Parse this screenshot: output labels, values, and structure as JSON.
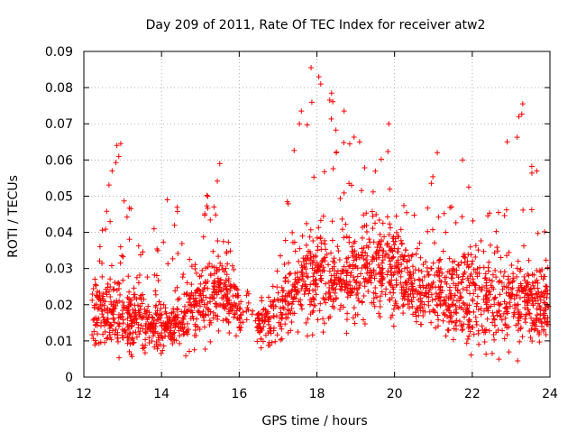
{
  "chart_data": {
    "type": "scatter",
    "title": "Day 209 of 2011, Rate Of TEC Index for receiver atw2",
    "xlabel": "GPS time / hours",
    "ylabel": "ROTI / TECUs",
    "xlim": [
      12,
      24
    ],
    "ylim": [
      0,
      0.09
    ],
    "xticks": [
      12,
      14,
      16,
      18,
      20,
      22,
      24
    ],
    "xtick_labels": [
      "12",
      "14",
      "16",
      "18",
      "20",
      "22",
      "24"
    ],
    "yticks": [
      0,
      0.01,
      0.02,
      0.03,
      0.04,
      0.05,
      0.06,
      0.07,
      0.08,
      0.09
    ],
    "ytick_labels": [
      "0",
      "0.01",
      "0.02",
      "0.03",
      "0.04",
      "0.05",
      "0.06",
      "0.07",
      "0.08",
      "0.09"
    ],
    "grid": true,
    "marker": "+",
    "color": "#ff0000",
    "density_profile": [
      {
        "x": 12.2,
        "base": 0.018,
        "spread": 0.01,
        "peak": 0.04
      },
      {
        "x": 12.8,
        "base": 0.018,
        "spread": 0.01,
        "peak": 0.064
      },
      {
        "x": 13.5,
        "base": 0.015,
        "spread": 0.007,
        "peak": 0.035
      },
      {
        "x": 14.2,
        "base": 0.014,
        "spread": 0.006,
        "peak": 0.049
      },
      {
        "x": 15.0,
        "base": 0.02,
        "spread": 0.01,
        "peak": 0.047
      },
      {
        "x": 15.5,
        "base": 0.025,
        "spread": 0.01,
        "peak": 0.059
      },
      {
        "x": 16.0,
        "base": 0.018,
        "spread": 0.006,
        "peak": 0.025
      },
      {
        "x": 16.6,
        "base": 0.014,
        "spread": 0.005,
        "peak": 0.023
      },
      {
        "x": 17.0,
        "base": 0.018,
        "spread": 0.008,
        "peak": 0.033
      },
      {
        "x": 17.5,
        "base": 0.025,
        "spread": 0.012,
        "peak": 0.074
      },
      {
        "x": 18.0,
        "base": 0.028,
        "spread": 0.012,
        "peak": 0.086
      },
      {
        "x": 18.7,
        "base": 0.026,
        "spread": 0.012,
        "peak": 0.074
      },
      {
        "x": 19.3,
        "base": 0.03,
        "spread": 0.012,
        "peak": 0.058
      },
      {
        "x": 19.9,
        "base": 0.032,
        "spread": 0.012,
        "peak": 0.07
      },
      {
        "x": 20.5,
        "base": 0.024,
        "spread": 0.009,
        "peak": 0.045
      },
      {
        "x": 21.0,
        "base": 0.024,
        "spread": 0.01,
        "peak": 0.062
      },
      {
        "x": 21.6,
        "base": 0.022,
        "spread": 0.012,
        "peak": 0.06
      },
      {
        "x": 22.2,
        "base": 0.022,
        "spread": 0.013,
        "peak": 0.055
      },
      {
        "x": 22.8,
        "base": 0.02,
        "spread": 0.012,
        "peak": 0.05
      },
      {
        "x": 23.3,
        "base": 0.022,
        "spread": 0.012,
        "peak": 0.076
      },
      {
        "x": 23.8,
        "base": 0.02,
        "spread": 0.01,
        "peak": 0.052
      }
    ],
    "peaks": [
      {
        "x": 12.85,
        "y": 0.064
      },
      {
        "x": 12.95,
        "y": 0.0645
      },
      {
        "x": 12.9,
        "y": 0.061
      },
      {
        "x": 14.15,
        "y": 0.049
      },
      {
        "x": 15.5,
        "y": 0.059
      },
      {
        "x": 17.85,
        "y": 0.0855
      },
      {
        "x": 18.05,
        "y": 0.083
      },
      {
        "x": 18.1,
        "y": 0.081
      },
      {
        "x": 17.6,
        "y": 0.0735
      },
      {
        "x": 17.55,
        "y": 0.07
      },
      {
        "x": 18.7,
        "y": 0.0735
      },
      {
        "x": 19.85,
        "y": 0.07
      },
      {
        "x": 23.3,
        "y": 0.0755
      },
      {
        "x": 23.2,
        "y": 0.072
      },
      {
        "x": 21.1,
        "y": 0.062
      },
      {
        "x": 21.75,
        "y": 0.06
      },
      {
        "x": 22.9,
        "y": 0.065
      },
      {
        "x": 19.1,
        "y": 0.065
      },
      {
        "x": 18.5,
        "y": 0.062
      },
      {
        "x": 15.35,
        "y": 0.047
      }
    ]
  }
}
